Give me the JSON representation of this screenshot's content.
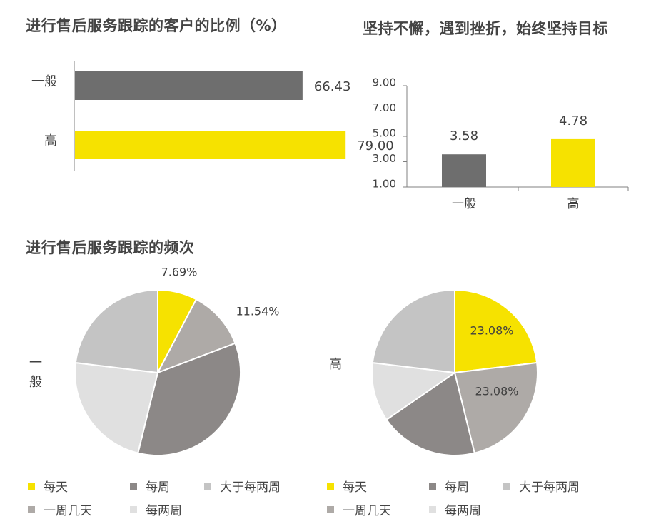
{
  "titles": {
    "hbar": "进行售后服务跟踪的客户的比例（%）",
    "vbar": "坚持不懈，遇到挫折，始终坚持目标",
    "pie": "进行售后服务跟踪的频次"
  },
  "colors": {
    "yellow": "#f6e200",
    "dark_gray": "#6e6e6e",
    "mid_gray": "#8c8887",
    "taupe": "#aeaaa7",
    "light_gray": "#c4c4c4",
    "lighter_gray": "#e0e0e0"
  },
  "chart_data": [
    {
      "type": "bar",
      "orientation": "horizontal",
      "title": "进行售后服务跟踪的客户的比例（%）",
      "categories": [
        "一般",
        "高"
      ],
      "values": [
        66.43,
        79.0
      ],
      "data_labels": [
        "66.43",
        "79.00"
      ],
      "xlim": [
        0,
        100
      ]
    },
    {
      "type": "bar",
      "orientation": "vertical",
      "title": "坚持不懈，遇到挫折，始终坚持目标",
      "categories": [
        "一般",
        "高"
      ],
      "values": [
        3.58,
        4.78
      ],
      "data_labels": [
        "3.58",
        "4.78"
      ],
      "ytick_labels": [
        "1.00",
        "3.00",
        "5.00",
        "7.00",
        "9.00"
      ],
      "ylim": [
        1,
        9
      ]
    },
    {
      "type": "pie",
      "title": "进行售后服务跟踪的频次",
      "name": "一般",
      "name_chars": [
        "一",
        "般"
      ],
      "categories": [
        "每天",
        "大于每两周",
        "每周",
        "每两周",
        "一周几天"
      ],
      "values": [
        7.69,
        11.54,
        34.62,
        23.08,
        23.08
      ],
      "data_labels": [
        "7.69%",
        "11.54%",
        "",
        "",
        ""
      ],
      "legend": [
        "每天",
        "每周",
        "大于每两周",
        "一周几天",
        "每两周"
      ]
    },
    {
      "type": "pie",
      "name": "高",
      "categories": [
        "每天",
        "大于每两周",
        "每周",
        "每两周",
        "一周几天"
      ],
      "values": [
        23.08,
        23.08,
        19.23,
        11.54,
        23.08
      ],
      "data_labels": [
        "23.08%",
        "23.08%",
        "",
        "",
        ""
      ],
      "legend": [
        "每天",
        "每周",
        "大于每两周",
        "一周几天",
        "每两周"
      ]
    }
  ]
}
